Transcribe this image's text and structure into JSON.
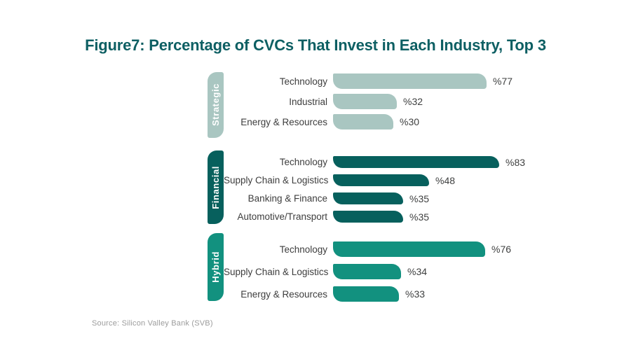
{
  "title": "Figure7: Percentage of CVCs That Invest in Each Industry, Top 3",
  "source": "Source: Silicon Valley Bank (SVB)",
  "colors": {
    "title": "#0d5f63",
    "strategic": "#a9c6c1",
    "financial": "#07605d",
    "hybrid": "#12917f",
    "category_text": "#3d3d3d",
    "value_text": "#3f4040",
    "source_text": "#9c9c9c",
    "pill_text": "#ffffff"
  },
  "chart_data": {
    "type": "bar",
    "orientation": "horizontal",
    "title": "Figure7: Percentage of CVCs That Invest in Each Industry, Top 3",
    "xlabel": "",
    "ylabel": "",
    "xlim": [
      0,
      100
    ],
    "grid": false,
    "legend": false,
    "value_prefix": "%",
    "groups": [
      {
        "name": "Strategic",
        "color": "#a9c6c1",
        "bars": [
          {
            "label": "Technology",
            "value": 77,
            "display": "%77"
          },
          {
            "label": "Industrial",
            "value": 32,
            "display": "%32"
          },
          {
            "label": "Energy & Resources",
            "value": 30,
            "display": "%30"
          }
        ]
      },
      {
        "name": "Financial",
        "color": "#07605d",
        "bars": [
          {
            "label": "Technology",
            "value": 83,
            "display": "%83"
          },
          {
            "label": "Supply Chain & Logistics",
            "value": 48,
            "display": "%48"
          },
          {
            "label": "Banking & Finance",
            "value": 35,
            "display": "%35"
          },
          {
            "label": "Automotive/Transport",
            "value": 35,
            "display": "%35"
          }
        ]
      },
      {
        "name": "Hybrid",
        "color": "#12917f",
        "bars": [
          {
            "label": "Technology",
            "value": 76,
            "display": "%76"
          },
          {
            "label": "Supply Chain & Logistics",
            "value": 34,
            "display": "%34"
          },
          {
            "label": "Energy & Resources",
            "value": 33,
            "display": "%33"
          }
        ]
      }
    ]
  }
}
